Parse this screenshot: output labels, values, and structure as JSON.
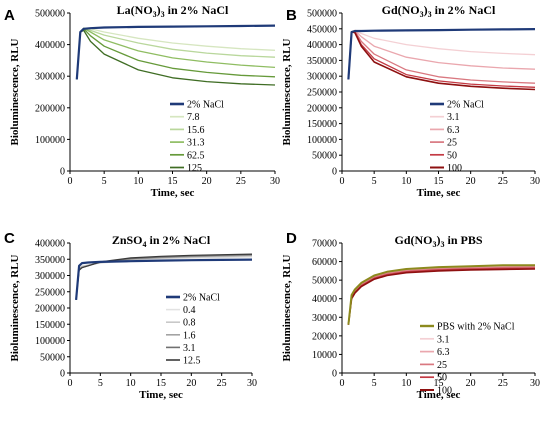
{
  "chart_data": [
    {
      "type": "line",
      "panel_label": "A",
      "title": "La(NO3)3 in 2% NaCl",
      "title_parts": [
        "La(NO",
        "3",
        ")",
        "3",
        " in 2% NaCl"
      ],
      "xlabel": "Time, sec",
      "ylabel": "Bioluminescence, RLU",
      "xlim": [
        0,
        30
      ],
      "ylim": [
        0,
        500000
      ],
      "xticks": [
        "0",
        "5",
        "10",
        "15",
        "20",
        "25",
        "30"
      ],
      "yticks": [
        "0",
        "100000",
        "200000",
        "300000",
        "400000",
        "500000"
      ],
      "legend_position": "right",
      "series": [
        {
          "name": "2% NaCl",
          "color": "#1f3a78",
          "width": 2.2,
          "x": [
            1,
            1.5,
            2,
            3,
            5,
            10,
            15,
            20,
            25,
            30
          ],
          "y": [
            290000,
            440000,
            450000,
            452000,
            454000,
            456000,
            457000,
            458000,
            459000,
            460000
          ]
        },
        {
          "name": "7.8",
          "color": "#d6e6c0",
          "width": 1.3,
          "x": [
            1,
            1.5,
            2,
            3,
            5,
            10,
            15,
            20,
            25,
            30
          ],
          "y": [
            290000,
            440000,
            452000,
            450000,
            440000,
            420000,
            405000,
            395000,
            387000,
            382000
          ]
        },
        {
          "name": "15.6",
          "color": "#b9d79c",
          "width": 1.3,
          "x": [
            1,
            1.5,
            2,
            3,
            5,
            10,
            15,
            20,
            25,
            30
          ],
          "y": [
            290000,
            440000,
            452000,
            445000,
            430000,
            405000,
            385000,
            373000,
            365000,
            360000
          ]
        },
        {
          "name": "31.3",
          "color": "#8fbd62",
          "width": 1.3,
          "x": [
            1,
            1.5,
            2,
            3,
            5,
            10,
            15,
            20,
            25,
            30
          ],
          "y": [
            290000,
            440000,
            452000,
            440000,
            415000,
            380000,
            358000,
            345000,
            335000,
            328000
          ]
        },
        {
          "name": "62.5",
          "color": "#669a3a",
          "width": 1.3,
          "x": [
            1,
            1.5,
            2,
            3,
            5,
            10,
            15,
            20,
            25,
            30
          ],
          "y": [
            290000,
            440000,
            450000,
            428000,
            395000,
            350000,
            325000,
            312000,
            303000,
            298000
          ]
        },
        {
          "name": "125",
          "color": "#3f6d24",
          "width": 1.3,
          "x": [
            1,
            1.5,
            2,
            3,
            5,
            10,
            15,
            20,
            25,
            30
          ],
          "y": [
            290000,
            440000,
            445000,
            410000,
            370000,
            320000,
            295000,
            283000,
            276000,
            272000
          ]
        }
      ]
    },
    {
      "type": "line",
      "panel_label": "B",
      "title": "Gd(NO3)3 in 2% NaCl",
      "title_parts": [
        "Gd(NO",
        "3",
        ")",
        "3",
        " in 2% NaCl"
      ],
      "xlabel": "Time, sec",
      "ylabel": "Bioluminescence, RLU",
      "xlim": [
        0,
        30
      ],
      "ylim": [
        0,
        500000
      ],
      "xticks": [
        "0",
        "5",
        "10",
        "15",
        "20",
        "25",
        "30"
      ],
      "yticks": [
        "0",
        "50000",
        "100000",
        "150000",
        "200000",
        "250000",
        "300000",
        "350000",
        "400000",
        "450000",
        "500000"
      ],
      "legend_position": "right",
      "series": [
        {
          "name": "2% NaCl",
          "color": "#1f3a78",
          "width": 2.2,
          "x": [
            1,
            1.5,
            2,
            3,
            5,
            10,
            15,
            20,
            25,
            30
          ],
          "y": [
            290000,
            440000,
            443000,
            443000,
            444000,
            445000,
            446000,
            447000,
            448000,
            449000
          ]
        },
        {
          "name": "3.1",
          "color": "#f4d0d4",
          "width": 1.3,
          "x": [
            1,
            1.5,
            2,
            3,
            5,
            10,
            15,
            20,
            25,
            30
          ],
          "y": [
            290000,
            440000,
            445000,
            435000,
            420000,
            400000,
            387000,
            378000,
            372000,
            368000
          ]
        },
        {
          "name": "6.3",
          "color": "#eaa7ae",
          "width": 1.3,
          "x": [
            1,
            1.5,
            2,
            3,
            5,
            10,
            15,
            20,
            25,
            30
          ],
          "y": [
            290000,
            440000,
            445000,
            425000,
            395000,
            360000,
            343000,
            333000,
            326000,
            322000
          ]
        },
        {
          "name": "25",
          "color": "#d97880",
          "width": 1.3,
          "x": [
            1,
            1.5,
            2,
            3,
            5,
            10,
            15,
            20,
            25,
            30
          ],
          "y": [
            290000,
            440000,
            443000,
            410000,
            370000,
            320000,
            298000,
            288000,
            282000,
            278000
          ]
        },
        {
          "name": "50",
          "color": "#c43a44",
          "width": 1.3,
          "x": [
            1,
            1.5,
            2,
            3,
            5,
            10,
            15,
            20,
            25,
            30
          ],
          "y": [
            290000,
            440000,
            440000,
            400000,
            355000,
            305000,
            285000,
            275000,
            269000,
            265000
          ]
        },
        {
          "name": "100",
          "color": "#8e1010",
          "width": 1.6,
          "x": [
            1,
            1.5,
            2,
            3,
            5,
            10,
            15,
            20,
            25,
            30
          ],
          "y": [
            290000,
            440000,
            438000,
            395000,
            345000,
            298000,
            278000,
            268000,
            262000,
            258000
          ]
        }
      ]
    },
    {
      "type": "line",
      "panel_label": "C",
      "title": "ZnSO4 in 2% NaCl",
      "title_parts": [
        "ZnSO",
        "4",
        " in 2% NaCl"
      ],
      "xlabel": "Time, sec",
      "ylabel": "Bioluminescence, RLU",
      "xlim": [
        0,
        30
      ],
      "ylim": [
        0,
        400000
      ],
      "xticks": [
        "0",
        "5",
        "10",
        "15",
        "20",
        "25",
        "30"
      ],
      "yticks": [
        "0",
        "50000",
        "100000",
        "150000",
        "200000",
        "250000",
        "300000",
        "350000",
        "400000"
      ],
      "legend_position": "right",
      "series": [
        {
          "name": "2% NaCl",
          "color": "#1f3a78",
          "width": 2.2,
          "x": [
            1,
            1.5,
            2,
            3,
            5,
            10,
            15,
            20,
            25,
            30
          ],
          "y": [
            225000,
            330000,
            338000,
            340000,
            342000,
            344000,
            346000,
            347000,
            348000,
            349000
          ]
        },
        {
          "name": "0.4",
          "color": "#e2e2e2",
          "width": 1.2,
          "x": [
            1,
            1.5,
            2,
            3,
            5,
            10,
            15,
            20,
            25,
            30
          ],
          "y": [
            225000,
            325000,
            330000,
            333000,
            338000,
            346000,
            350000,
            353000,
            355000,
            357000
          ]
        },
        {
          "name": "0.8",
          "color": "#c8c8c8",
          "width": 1.2,
          "x": [
            1,
            1.5,
            2,
            3,
            5,
            10,
            15,
            20,
            25,
            30
          ],
          "y": [
            225000,
            322000,
            328000,
            332000,
            339000,
            348000,
            353000,
            356000,
            358000,
            360000
          ]
        },
        {
          "name": "1.6",
          "color": "#a3a3a3",
          "width": 1.2,
          "x": [
            1,
            1.5,
            2,
            3,
            5,
            10,
            15,
            20,
            25,
            30
          ],
          "y": [
            225000,
            320000,
            326000,
            331000,
            340000,
            350000,
            355000,
            358000,
            360000,
            362000
          ]
        },
        {
          "name": "3.1",
          "color": "#707070",
          "width": 1.2,
          "x": [
            1,
            1.5,
            2,
            3,
            5,
            10,
            15,
            20,
            25,
            30
          ],
          "y": [
            225000,
            318000,
            325000,
            330000,
            341000,
            352000,
            357000,
            360000,
            362000,
            364000
          ]
        },
        {
          "name": "12.5",
          "color": "#3a3a3a",
          "width": 1.2,
          "x": [
            1,
            1.5,
            2,
            3,
            5,
            10,
            15,
            20,
            25,
            30
          ],
          "y": [
            225000,
            316000,
            324000,
            330000,
            342000,
            354000,
            359000,
            362000,
            364000,
            366000
          ]
        }
      ]
    },
    {
      "type": "line",
      "panel_label": "D",
      "title": "Gd(NO3)3 in PBS",
      "title_parts": [
        "Gd(NO",
        "3",
        ")",
        "3",
        " in PBS"
      ],
      "xlabel": "Time, sec",
      "ylabel": "Bioluminescence, RLU",
      "xlim": [
        0,
        30
      ],
      "ylim": [
        0,
        70000
      ],
      "xticks": [
        "0",
        "5",
        "10",
        "15",
        "20",
        "25",
        "30"
      ],
      "yticks": [
        "0",
        "10000",
        "20000",
        "30000",
        "40000",
        "50000",
        "60000",
        "70000"
      ],
      "legend_position": "right",
      "series": [
        {
          "name": "PBS with 2% NaCl",
          "color": "#8c8a1e",
          "width": 2.0,
          "x": [
            1,
            1.5,
            2,
            3,
            5,
            7,
            10,
            15,
            20,
            25,
            30
          ],
          "y": [
            26000,
            42000,
            45000,
            48500,
            52500,
            54500,
            56000,
            57000,
            57500,
            58000,
            58000
          ]
        },
        {
          "name": "3.1",
          "color": "#f4d0d4",
          "width": 1.3,
          "x": [
            1,
            1.5,
            2,
            3,
            5,
            7,
            10,
            15,
            20,
            25,
            30
          ],
          "y": [
            26000,
            42000,
            45000,
            48500,
            52500,
            54500,
            56000,
            57000,
            57500,
            58000,
            58200
          ]
        },
        {
          "name": "6.3",
          "color": "#eaa7ae",
          "width": 1.3,
          "x": [
            1,
            1.5,
            2,
            3,
            5,
            7,
            10,
            15,
            20,
            25,
            30
          ],
          "y": [
            26000,
            41500,
            44500,
            48000,
            52000,
            54000,
            55500,
            56500,
            57000,
            57300,
            57500
          ]
        },
        {
          "name": "25",
          "color": "#d97880",
          "width": 1.3,
          "x": [
            1,
            1.5,
            2,
            3,
            5,
            7,
            10,
            15,
            20,
            25,
            30
          ],
          "y": [
            26000,
            41000,
            44000,
            47500,
            51500,
            53500,
            55000,
            56000,
            56500,
            56800,
            57000
          ]
        },
        {
          "name": "50",
          "color": "#c43a44",
          "width": 1.3,
          "x": [
            1,
            1.5,
            2,
            3,
            5,
            7,
            10,
            15,
            20,
            25,
            30
          ],
          "y": [
            26000,
            40500,
            43500,
            47000,
            51000,
            53000,
            54500,
            55500,
            56000,
            56300,
            56500
          ]
        },
        {
          "name": "100",
          "color": "#8e1010",
          "width": 1.6,
          "x": [
            1,
            1.5,
            2,
            3,
            5,
            7,
            10,
            15,
            20,
            25,
            30
          ],
          "y": [
            26000,
            40000,
            43000,
            46500,
            50500,
            52500,
            54000,
            55000,
            55500,
            55800,
            56000
          ]
        }
      ]
    }
  ]
}
